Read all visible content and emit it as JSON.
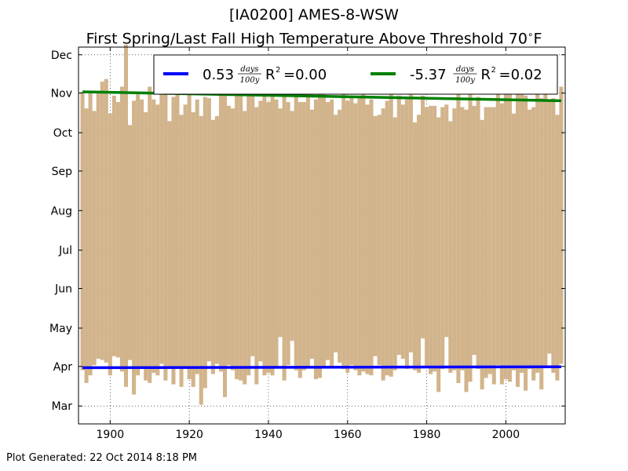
{
  "title_line1": "[IA0200] AMES-8-WSW",
  "title_line2": "First Spring/Last Fall High Temperature Above Threshold 70",
  "title_unit": "F",
  "footer": "Plot Generated: 22 Oct 2014 8:18 PM",
  "colors": {
    "bar": "#d2b48c",
    "spring_trend": "#0000ff",
    "fall_trend": "#008000"
  },
  "chart_data": {
    "type": "bar",
    "xlim": [
      1892,
      2015
    ],
    "ylim": [
      60,
      355
    ],
    "x_ticks": [
      1900,
      1920,
      1940,
      1960,
      1980,
      2000
    ],
    "y_ticks": [
      {
        "label": "Mar",
        "value": 74
      },
      {
        "label": "Apr",
        "value": 105
      },
      {
        "label": "May",
        "value": 135
      },
      {
        "label": "Jun",
        "value": 166
      },
      {
        "label": "Jul",
        "value": 196
      },
      {
        "label": "Aug",
        "value": 227
      },
      {
        "label": "Sep",
        "value": 258
      },
      {
        "label": "Oct",
        "value": 288
      },
      {
        "label": "Nov",
        "value": 319
      },
      {
        "label": "Dec",
        "value": 349
      }
    ],
    "years": [
      1893,
      1894,
      1895,
      1896,
      1897,
      1898,
      1899,
      1900,
      1901,
      1902,
      1903,
      1904,
      1905,
      1906,
      1907,
      1908,
      1909,
      1910,
      1911,
      1912,
      1913,
      1914,
      1915,
      1916,
      1917,
      1918,
      1919,
      1920,
      1921,
      1922,
      1923,
      1924,
      1925,
      1926,
      1927,
      1928,
      1929,
      1930,
      1931,
      1932,
      1933,
      1934,
      1935,
      1936,
      1937,
      1938,
      1939,
      1940,
      1941,
      1942,
      1943,
      1944,
      1945,
      1946,
      1947,
      1948,
      1949,
      1950,
      1951,
      1952,
      1953,
      1954,
      1955,
      1956,
      1957,
      1958,
      1959,
      1960,
      1961,
      1962,
      1963,
      1964,
      1965,
      1966,
      1967,
      1968,
      1969,
      1970,
      1971,
      1972,
      1973,
      1974,
      1975,
      1976,
      1977,
      1978,
      1979,
      1980,
      1981,
      1982,
      1983,
      1984,
      1985,
      1986,
      1987,
      1988,
      1989,
      1990,
      1991,
      1992,
      1993,
      1994,
      1995,
      1996,
      1997,
      1998,
      1999,
      2000,
      2001,
      2002,
      2003,
      2004,
      2005,
      2006,
      2007,
      2008,
      2009,
      2010,
      2011,
      2012,
      2013,
      2014
    ],
    "first_spring": [
      102,
      92,
      98,
      106,
      111,
      110,
      108,
      98,
      113,
      112,
      101,
      89,
      110,
      83,
      98,
      103,
      94,
      92,
      100,
      98,
      107,
      94,
      104,
      91,
      105,
      89,
      104,
      95,
      89,
      99,
      75,
      88,
      109,
      99,
      107,
      101,
      81,
      106,
      102,
      95,
      94,
      91,
      98,
      113,
      91,
      109,
      98,
      100,
      98,
      105,
      128,
      94,
      106,
      125,
      102,
      96,
      102,
      104,
      111,
      95,
      96,
      105,
      110,
      105,
      116,
      108,
      103,
      100,
      106,
      102,
      98,
      101,
      99,
      98,
      113,
      106,
      94,
      98,
      97,
      102,
      114,
      111,
      103,
      116,
      102,
      100,
      127,
      104,
      99,
      101,
      85,
      103,
      128,
      100,
      102,
      92,
      102,
      85,
      93,
      114,
      103,
      87,
      96,
      99,
      91,
      106,
      91,
      95,
      93,
      102,
      89,
      100,
      86,
      103,
      94,
      100,
      87,
      105,
      115,
      100,
      94,
      107
    ],
    "last_fall": [
      320,
      307,
      319,
      305,
      319,
      328,
      330,
      303,
      317,
      312,
      324,
      357,
      294,
      313,
      318,
      314,
      304,
      324,
      314,
      310,
      327,
      318,
      297,
      316,
      320,
      302,
      310,
      323,
      304,
      314,
      301,
      316,
      315,
      298,
      301,
      318,
      319,
      309,
      307,
      318,
      328,
      305,
      317,
      326,
      308,
      313,
      318,
      312,
      319,
      314,
      307,
      322,
      312,
      305,
      323,
      312,
      312,
      326,
      306,
      314,
      323,
      326,
      312,
      314,
      302,
      306,
      323,
      313,
      316,
      311,
      317,
      318,
      310,
      314,
      301,
      302,
      307,
      313,
      319,
      300,
      317,
      310,
      314,
      319,
      296,
      302,
      317,
      308,
      309,
      309,
      300,
      308,
      310,
      297,
      307,
      330,
      308,
      306,
      319,
      309,
      316,
      298,
      308,
      308,
      308,
      322,
      311,
      321,
      322,
      303,
      324,
      319,
      317,
      306,
      308,
      322,
      315,
      318,
      314,
      315,
      302,
      324
    ],
    "series": [
      {
        "name": "0.53",
        "units_num": "days",
        "units_den": "100y",
        "r2_label": "R",
        "r2_text": "=0.00",
        "start": 104,
        "end": 104.7
      },
      {
        "name": "-5.37",
        "units_num": "days",
        "units_den": "100y",
        "r2_label": "R",
        "r2_text": "=0.02",
        "start": 320,
        "end": 313
      }
    ],
    "grid": true,
    "legend_position": "top"
  }
}
